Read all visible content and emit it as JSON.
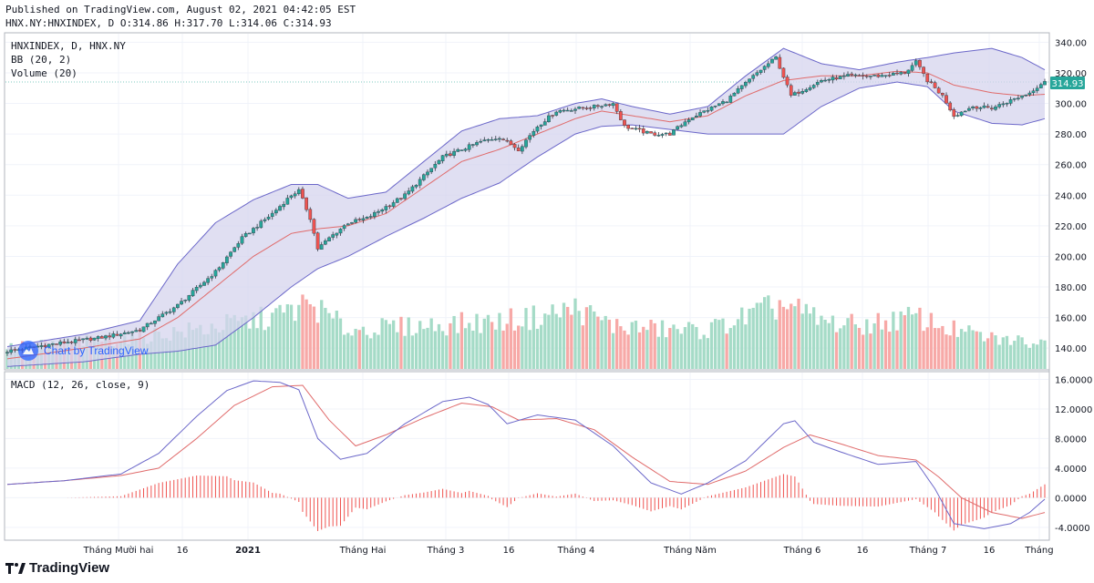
{
  "header": {
    "line1": "Published on TradingView.com, August 02, 2021 04:42:05 EST",
    "line2": "HNX.NY:HNXINDEX, D O:314.86 H:317.70 L:314.06 C:314.93"
  },
  "legend": {
    "symbol": "HNXINDEX, D, HNX.NY",
    "bb": "BB (20, 2)",
    "volume": "Volume (20)",
    "macd": "MACD (12, 26, close, 9)"
  },
  "watermark": "Chart by TradingView",
  "footer": {
    "brand": "TradingView"
  },
  "colors": {
    "up": "#26a69a",
    "down": "#ef5350",
    "vol_up": "#a5dbc7",
    "vol_down": "#f7a9a7",
    "bb_fill": "#d6d4ee",
    "bb_line": "#6b67c9",
    "bb_mid": "#e06b6b",
    "macd_line": "#6b67c9",
    "signal_line": "#e06b6b",
    "hist": "#ef5350",
    "price_tag": "#26a69a"
  },
  "chart_data": [
    {
      "type": "candlestick",
      "title": "HNXINDEX, D, HNX.NY",
      "ylim": [
        127,
        345
      ],
      "y_ticks": [
        "340.00",
        "320.00",
        "300.00",
        "280.00",
        "260.00",
        "240.00",
        "220.00",
        "200.00",
        "180.00",
        "160.00",
        "140.00"
      ],
      "last_price": "314.93",
      "x_ticks": [
        "Tháng Mười hai",
        "16",
        "2021",
        "Tháng Hai",
        "Tháng 3",
        "16",
        "Tháng 4",
        "Tháng Năm",
        "Tháng 6",
        "16",
        "Tháng 7",
        "16",
        "Tháng"
      ],
      "close_keypoints": [
        [
          0,
          138
        ],
        [
          10,
          142
        ],
        [
          25,
          147
        ],
        [
          35,
          152
        ],
        [
          45,
          168
        ],
        [
          55,
          190
        ],
        [
          62,
          212
        ],
        [
          70,
          228
        ],
        [
          75,
          240
        ],
        [
          77,
          243
        ],
        [
          80,
          225
        ],
        [
          82,
          205
        ],
        [
          85,
          212
        ],
        [
          90,
          222
        ],
        [
          95,
          225
        ],
        [
          105,
          240
        ],
        [
          115,
          265
        ],
        [
          125,
          275
        ],
        [
          130,
          278
        ],
        [
          135,
          270
        ],
        [
          140,
          285
        ],
        [
          145,
          295
        ],
        [
          155,
          298
        ],
        [
          160,
          300
        ],
        [
          163,
          285
        ],
        [
          170,
          280
        ],
        [
          175,
          280
        ],
        [
          180,
          290
        ],
        [
          190,
          302
        ],
        [
          198,
          320
        ],
        [
          203,
          330
        ],
        [
          207,
          305
        ],
        [
          215,
          315
        ],
        [
          222,
          318
        ],
        [
          230,
          318
        ],
        [
          237,
          320
        ],
        [
          240,
          327
        ],
        [
          243,
          315
        ],
        [
          247,
          305
        ],
        [
          250,
          292
        ],
        [
          255,
          298
        ],
        [
          260,
          297
        ],
        [
          265,
          302
        ],
        [
          270,
          307
        ],
        [
          274,
          314.9
        ]
      ],
      "series": [
        {
          "name": "BB Upper",
          "keypoints": [
            [
              0,
              141
            ],
            [
              20,
              149
            ],
            [
              35,
              158
            ],
            [
              45,
              195
            ],
            [
              55,
              222
            ],
            [
              65,
              237
            ],
            [
              75,
              247
            ],
            [
              82,
              247
            ],
            [
              90,
              238
            ],
            [
              100,
              242
            ],
            [
              110,
              262
            ],
            [
              120,
              282
            ],
            [
              130,
              290
            ],
            [
              140,
              292
            ],
            [
              150,
              300
            ],
            [
              157,
              303
            ],
            [
              165,
              298
            ],
            [
              175,
              293
            ],
            [
              185,
              298
            ],
            [
              195,
              318
            ],
            [
              205,
              336
            ],
            [
              215,
              326
            ],
            [
              225,
              322
            ],
            [
              235,
              327
            ],
            [
              243,
              330
            ],
            [
              250,
              333
            ],
            [
              260,
              336
            ],
            [
              268,
              330
            ],
            [
              274,
              322
            ]
          ]
        },
        {
          "name": "BB Middle",
          "keypoints": [
            [
              0,
              133
            ],
            [
              20,
              140
            ],
            [
              35,
              146
            ],
            [
              45,
              160
            ],
            [
              55,
              180
            ],
            [
              65,
              200
            ],
            [
              75,
              215
            ],
            [
              82,
              218
            ],
            [
              90,
              220
            ],
            [
              100,
              228
            ],
            [
              110,
              245
            ],
            [
              120,
              262
            ],
            [
              130,
              270
            ],
            [
              140,
              280
            ],
            [
              150,
              290
            ],
            [
              157,
              295
            ],
            [
              165,
              292
            ],
            [
              175,
              288
            ],
            [
              185,
              292
            ],
            [
              195,
              305
            ],
            [
              205,
              315
            ],
            [
              215,
              318
            ],
            [
              225,
              318
            ],
            [
              235,
              321
            ],
            [
              243,
              320
            ],
            [
              250,
              312
            ],
            [
              260,
              307
            ],
            [
              268,
              305
            ],
            [
              274,
              306
            ]
          ]
        },
        {
          "name": "BB Lower",
          "keypoints": [
            [
              0,
              128
            ],
            [
              20,
              131
            ],
            [
              35,
              136
            ],
            [
              45,
              138
            ],
            [
              55,
              142
            ],
            [
              65,
              160
            ],
            [
              75,
              180
            ],
            [
              82,
              192
            ],
            [
              90,
              200
            ],
            [
              100,
              213
            ],
            [
              110,
              225
            ],
            [
              120,
              238
            ],
            [
              130,
              248
            ],
            [
              140,
              265
            ],
            [
              150,
              280
            ],
            [
              157,
              285
            ],
            [
              165,
              286
            ],
            [
              175,
              283
            ],
            [
              185,
              280
            ],
            [
              195,
              280
            ],
            [
              205,
              280
            ],
            [
              215,
              298
            ],
            [
              225,
              310
            ],
            [
              235,
              314
            ],
            [
              243,
              311
            ],
            [
              250,
              295
            ],
            [
              260,
              287
            ],
            [
              268,
              286
            ],
            [
              274,
              290
            ]
          ]
        }
      ]
    },
    {
      "type": "bar",
      "title": "Volume (20)",
      "keypoints": [
        [
          0,
          0.25
        ],
        [
          30,
          0.35
        ],
        [
          50,
          0.45
        ],
        [
          70,
          0.6
        ],
        [
          80,
          0.75
        ],
        [
          90,
          0.45
        ],
        [
          110,
          0.5
        ],
        [
          130,
          0.55
        ],
        [
          140,
          0.6
        ],
        [
          150,
          0.7
        ],
        [
          160,
          0.5
        ],
        [
          175,
          0.45
        ],
        [
          185,
          0.45
        ],
        [
          195,
          0.6
        ],
        [
          205,
          0.75
        ],
        [
          215,
          0.55
        ],
        [
          225,
          0.5
        ],
        [
          240,
          0.6
        ],
        [
          250,
          0.45
        ],
        [
          260,
          0.35
        ],
        [
          274,
          0.3
        ]
      ]
    },
    {
      "type": "line",
      "title": "MACD (12, 26, close, 9)",
      "ylim": [
        -5.5,
        16.8
      ],
      "y_ticks": [
        "16.0000",
        "12.0000",
        "8.0000",
        "4.0000",
        "0.0000",
        "-4.0000"
      ],
      "series": [
        {
          "name": "MACD",
          "keypoints": [
            [
              0,
              1.8
            ],
            [
              15,
              2.3
            ],
            [
              30,
              3.2
            ],
            [
              40,
              6
            ],
            [
              50,
              11
            ],
            [
              58,
              14.5
            ],
            [
              65,
              15.8
            ],
            [
              72,
              15.6
            ],
            [
              77,
              14.6
            ],
            [
              82,
              8
            ],
            [
              88,
              5.2
            ],
            [
              95,
              6
            ],
            [
              105,
              10
            ],
            [
              115,
              13
            ],
            [
              122,
              13.6
            ],
            [
              127,
              12.6
            ],
            [
              132,
              10
            ],
            [
              140,
              11.2
            ],
            [
              150,
              10.5
            ],
            [
              160,
              7
            ],
            [
              170,
              2
            ],
            [
              178,
              0.5
            ],
            [
              185,
              2
            ],
            [
              195,
              5
            ],
            [
              205,
              10
            ],
            [
              208,
              10.4
            ],
            [
              213,
              7.5
            ],
            [
              220,
              6.2
            ],
            [
              230,
              4.5
            ],
            [
              240,
              4.9
            ],
            [
              245,
              1.2
            ],
            [
              250,
              -3.5
            ],
            [
              258,
              -4.2
            ],
            [
              265,
              -3.5
            ],
            [
              270,
              -2
            ],
            [
              274,
              -0.2
            ]
          ]
        },
        {
          "name": "Signal",
          "keypoints": [
            [
              0,
              1.8
            ],
            [
              15,
              2.3
            ],
            [
              30,
              3
            ],
            [
              40,
              4
            ],
            [
              50,
              8
            ],
            [
              60,
              12.5
            ],
            [
              70,
              15
            ],
            [
              78,
              15.2
            ],
            [
              85,
              10.5
            ],
            [
              92,
              7
            ],
            [
              100,
              8.5
            ],
            [
              110,
              10.8
            ],
            [
              120,
              12.8
            ],
            [
              128,
              12.3
            ],
            [
              135,
              10.5
            ],
            [
              145,
              10.7
            ],
            [
              155,
              9.2
            ],
            [
              165,
              5.5
            ],
            [
              175,
              2.2
            ],
            [
              185,
              1.8
            ],
            [
              195,
              3.6
            ],
            [
              205,
              6.8
            ],
            [
              212,
              8.5
            ],
            [
              220,
              7.3
            ],
            [
              230,
              5.7
            ],
            [
              240,
              5.1
            ],
            [
              246,
              2.8
            ],
            [
              252,
              0
            ],
            [
              260,
              -2
            ],
            [
              268,
              -2.8
            ],
            [
              274,
              -2
            ]
          ]
        }
      ]
    }
  ]
}
